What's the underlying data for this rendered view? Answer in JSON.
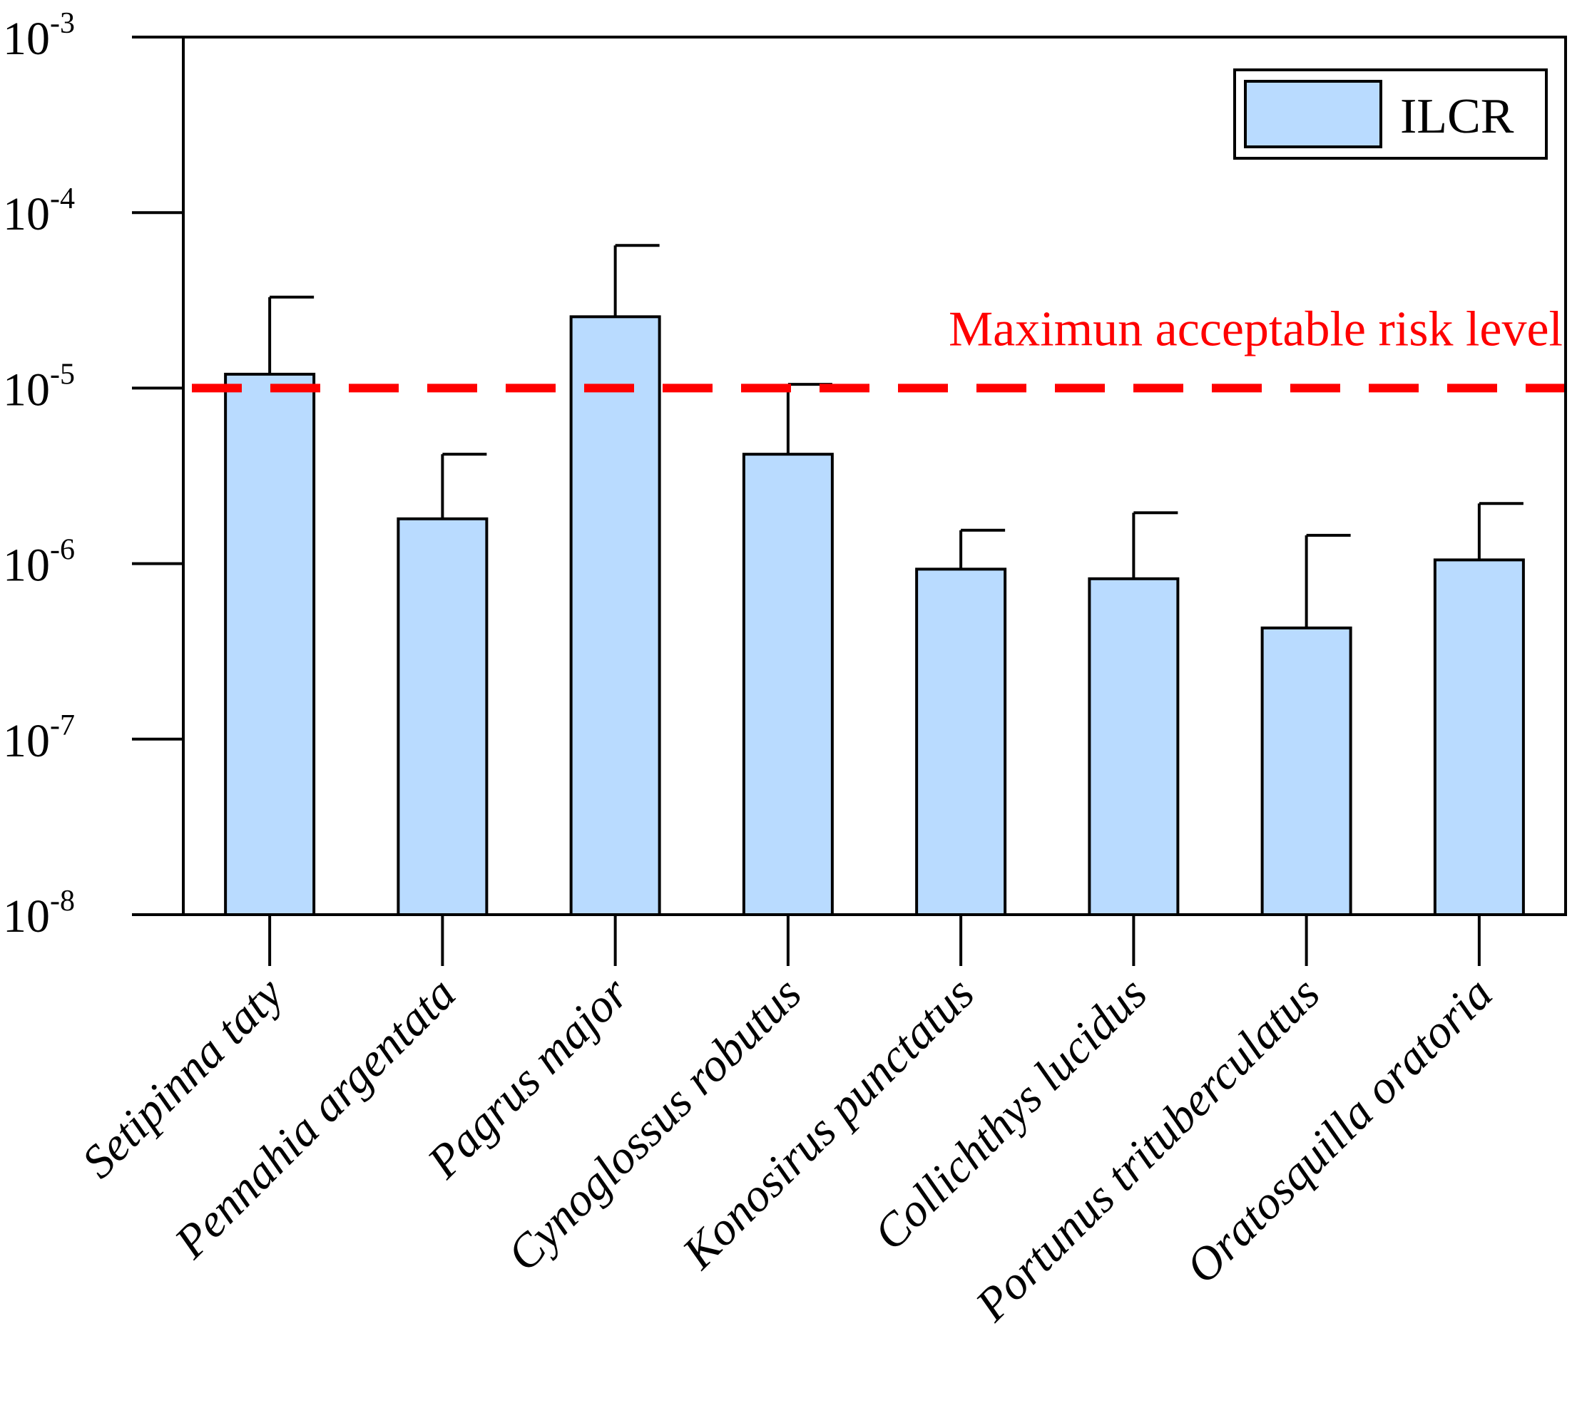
{
  "chart_data": {
    "type": "bar",
    "scale": "log",
    "categories": [
      "Setipinna taty",
      "Pennahia argentata",
      "Pagrus major",
      "Cynoglossus robutus",
      "Konosirus punctatus",
      "Collichthys lucidus",
      "Portunus trituberculatus",
      "Oratosquilla oratoria"
    ],
    "series": [
      {
        "name": "ILCR",
        "color": "#b9dbff",
        "values": [
          1.2e-05,
          1.8e-06,
          2.55e-05,
          4.2e-06,
          9.3e-07,
          8.2e-07,
          4.3e-07,
          1.05e-06
        ],
        "error_upper": [
          3.3e-05,
          4.2e-06,
          6.5e-05,
          1.05e-05,
          1.55e-06,
          1.95e-06,
          1.45e-06,
          2.2e-06
        ]
      }
    ],
    "ylim": [
      1e-08,
      0.001
    ],
    "yticks": [
      {
        "base": "10",
        "exp": "-8",
        "value": 1e-08
      },
      {
        "base": "10",
        "exp": "-7",
        "value": 1e-07
      },
      {
        "base": "10",
        "exp": "-6",
        "value": 1e-06
      },
      {
        "base": "10",
        "exp": "-5",
        "value": 1e-05
      },
      {
        "base": "10",
        "exp": "-4",
        "value": 0.0001
      },
      {
        "base": "10",
        "exp": "-3",
        "value": 0.001
      }
    ],
    "threshold": {
      "value": 1e-05,
      "label": "Maximun acceptable risk level",
      "color": "#ff0000"
    },
    "legend": {
      "position": "top-right",
      "label": "ILCR"
    },
    "xlabel": "",
    "ylabel": "",
    "title": ""
  }
}
